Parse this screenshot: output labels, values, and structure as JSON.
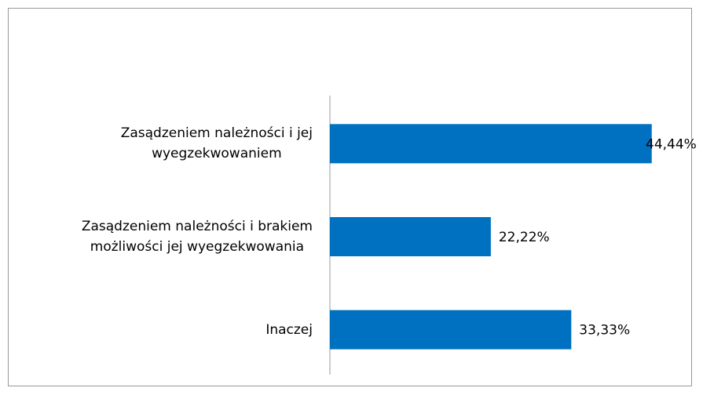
{
  "chart_data": {
    "type": "bar",
    "orientation": "horizontal",
    "categories": [
      "Zasądzeniem należności i jej\nwyegzekwowaniem",
      "Zasądzeniem należności i brakiem\nmożliwości jej wyegzekwowania",
      "Inaczej"
    ],
    "values": [
      44.44,
      22.22,
      33.33
    ],
    "value_labels": [
      "44,44%",
      "22,22%",
      "33,33%"
    ],
    "color": "#0070c0",
    "xlim": [
      0,
      50
    ]
  }
}
